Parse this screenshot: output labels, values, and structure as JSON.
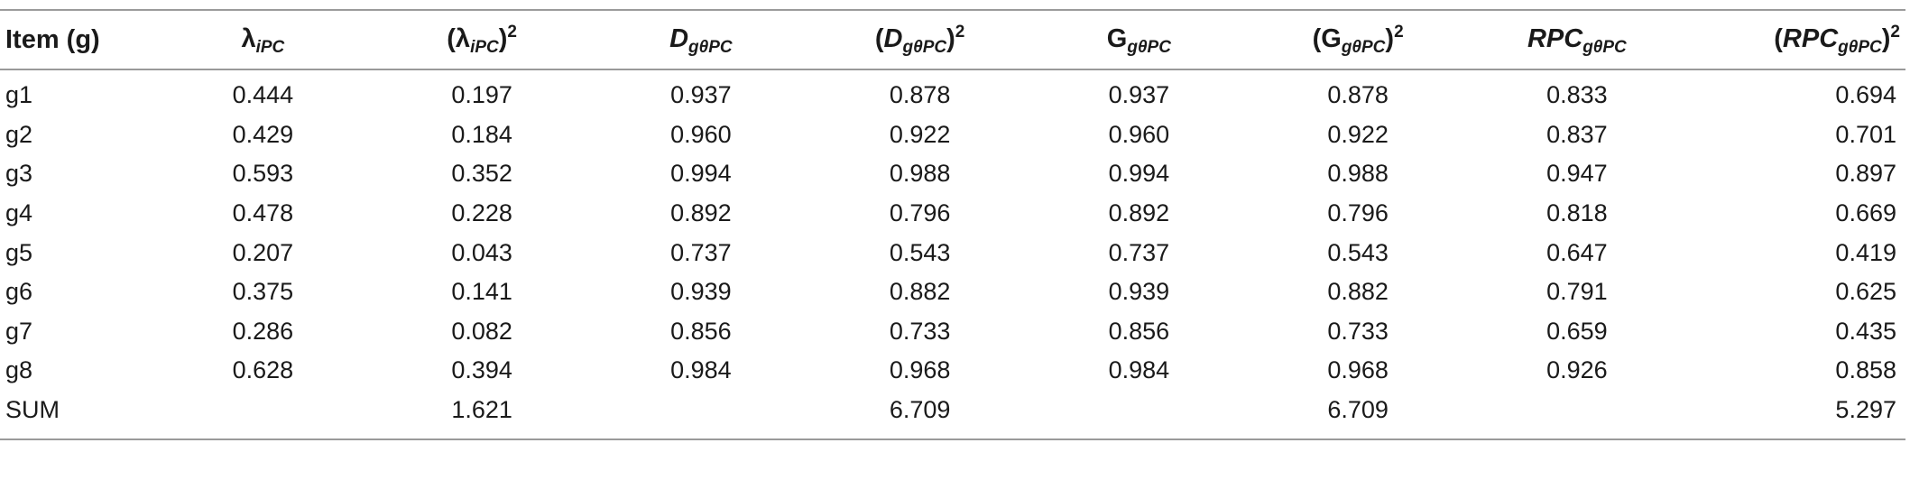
{
  "table": {
    "headers": [
      {
        "lead": "",
        "base": "Item (g)",
        "sub": "",
        "close": "",
        "sup": ""
      },
      {
        "lead": "",
        "base": "λ",
        "sub": "iPC",
        "close": "",
        "sup": ""
      },
      {
        "lead": "(",
        "base": "λ",
        "sub": "iPC",
        "close": ")",
        "sup": "2"
      },
      {
        "lead": "",
        "base": "D",
        "sub": "gθPC",
        "close": "",
        "sup": ""
      },
      {
        "lead": "(",
        "base": "D",
        "sub": "gθPC",
        "close": ")",
        "sup": "2"
      },
      {
        "lead": "",
        "base": "G",
        "sub": "gθPC",
        "close": "",
        "sup": ""
      },
      {
        "lead": "(",
        "base": "G",
        "sub": "gθPC",
        "close": ")",
        "sup": "2"
      },
      {
        "lead": "",
        "base": "RPC",
        "sub": "gθPC",
        "close": "",
        "sup": ""
      },
      {
        "lead": "(",
        "base": "RPC",
        "sub": "gθPC",
        "close": ")",
        "sup": "2"
      }
    ],
    "rows": [
      [
        "g1",
        "0.444",
        "0.197",
        "0.937",
        "0.878",
        "0.937",
        "0.878",
        "0.833",
        "0.694"
      ],
      [
        "g2",
        "0.429",
        "0.184",
        "0.960",
        "0.922",
        "0.960",
        "0.922",
        "0.837",
        "0.701"
      ],
      [
        "g3",
        "0.593",
        "0.352",
        "0.994",
        "0.988",
        "0.994",
        "0.988",
        "0.947",
        "0.897"
      ],
      [
        "g4",
        "0.478",
        "0.228",
        "0.892",
        "0.796",
        "0.892",
        "0.796",
        "0.818",
        "0.669"
      ],
      [
        "g5",
        "0.207",
        "0.043",
        "0.737",
        "0.543",
        "0.737",
        "0.543",
        "0.647",
        "0.419"
      ],
      [
        "g6",
        "0.375",
        "0.141",
        "0.939",
        "0.882",
        "0.939",
        "0.882",
        "0.791",
        "0.625"
      ],
      [
        "g7",
        "0.286",
        "0.082",
        "0.856",
        "0.733",
        "0.856",
        "0.733",
        "0.659",
        "0.435"
      ],
      [
        "g8",
        "0.628",
        "0.394",
        "0.984",
        "0.968",
        "0.984",
        "0.968",
        "0.926",
        "0.858"
      ],
      [
        "SUM",
        "",
        "1.621",
        "",
        "6.709",
        "",
        "6.709",
        "",
        "5.297"
      ]
    ]
  }
}
